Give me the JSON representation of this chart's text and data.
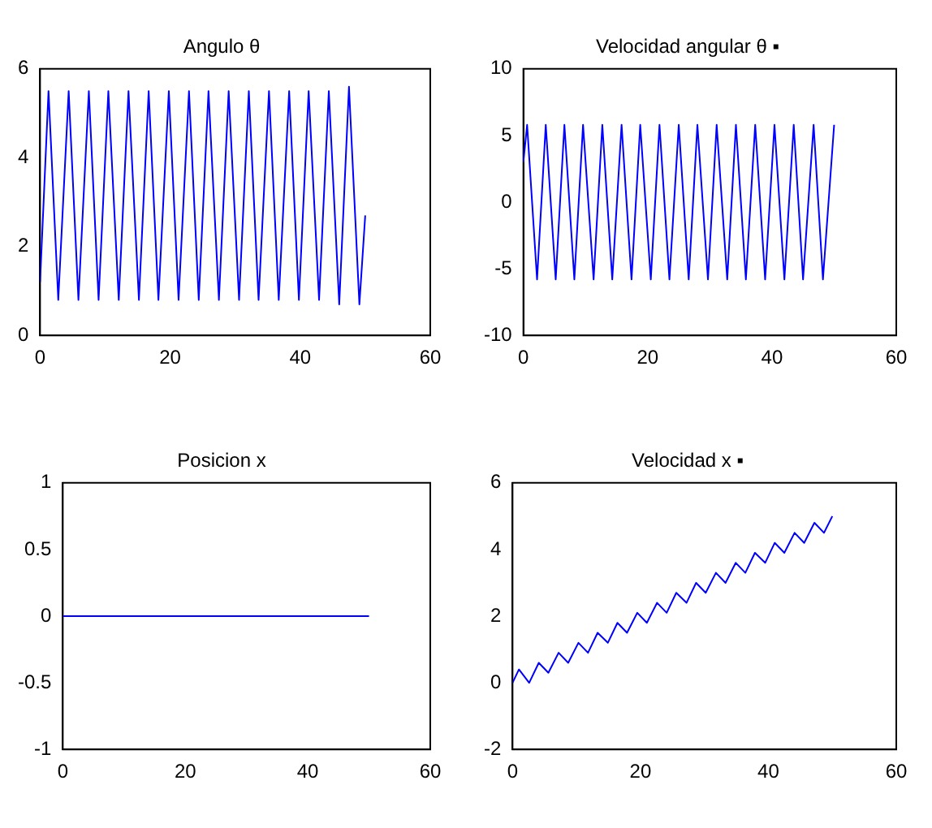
{
  "chart_data": [
    {
      "type": "line",
      "title": "Angulo θ",
      "xlim": [
        0,
        60
      ],
      "xticks": [
        0,
        20,
        40,
        60
      ],
      "ylim": [
        0,
        6
      ],
      "yticks": [
        0,
        2,
        4,
        6
      ],
      "grid": false,
      "legend": false,
      "series": [
        {
          "color": "#0000ff",
          "x": [
            0,
            1.3,
            2.8,
            4.4,
            5.9,
            7.5,
            9.0,
            10.5,
            12.1,
            13.6,
            15.2,
            16.7,
            18.2,
            19.8,
            21.3,
            22.9,
            24.4,
            25.9,
            27.5,
            29.0,
            30.6,
            32.1,
            33.6,
            35.2,
            36.7,
            38.3,
            39.8,
            41.3,
            42.9,
            44.4,
            46.0,
            47.5,
            49.1,
            50
          ],
          "values": [
            1.2,
            5.5,
            0.8,
            5.5,
            0.8,
            5.5,
            0.8,
            5.5,
            0.8,
            5.5,
            0.8,
            5.5,
            0.8,
            5.5,
            0.8,
            5.5,
            0.8,
            5.5,
            0.8,
            5.5,
            0.8,
            5.5,
            0.8,
            5.5,
            0.8,
            5.5,
            0.8,
            5.5,
            0.8,
            5.5,
            0.7,
            5.6,
            0.7,
            2.7
          ]
        }
      ]
    },
    {
      "type": "line",
      "title": "Velocidad angular θ ▪",
      "xlim": [
        0,
        60
      ],
      "xticks": [
        0,
        20,
        40,
        60
      ],
      "ylim": [
        -10,
        10
      ],
      "yticks": [
        -10,
        -5,
        0,
        5,
        10
      ],
      "grid": false,
      "legend": false,
      "series": [
        {
          "color": "#0000ff",
          "x": [
            0,
            0.6,
            2.2,
            3.6,
            5.2,
            6.6,
            8.2,
            9.6,
            11.3,
            12.7,
            14.3,
            15.8,
            17.4,
            18.8,
            20.5,
            21.9,
            23.5,
            25.0,
            26.6,
            28.0,
            29.7,
            31.1,
            32.8,
            34.2,
            35.8,
            37.3,
            38.9,
            40.4,
            42.0,
            43.5,
            45.0,
            46.7,
            48.2,
            50
          ],
          "values": [
            3,
            5.8,
            -5.8,
            5.8,
            -5.8,
            5.8,
            -5.8,
            5.8,
            -5.8,
            5.8,
            -5.8,
            5.8,
            -5.8,
            5.8,
            -5.8,
            5.8,
            -5.8,
            5.8,
            -5.8,
            5.8,
            -5.8,
            5.8,
            -5.8,
            5.8,
            -5.8,
            5.8,
            -5.8,
            5.8,
            -5.8,
            5.8,
            -5.8,
            5.8,
            -5.8,
            5.8
          ]
        }
      ]
    },
    {
      "type": "line",
      "title": "Posicion x",
      "xlim": [
        0,
        60
      ],
      "xticks": [
        0,
        20,
        40,
        60
      ],
      "ylim": [
        -1,
        1
      ],
      "yticks": [
        -1,
        -0.5,
        0,
        0.5,
        1
      ],
      "grid": false,
      "legend": false,
      "series": [
        {
          "color": "#0000ff",
          "x": [
            0,
            50
          ],
          "values": [
            0,
            0
          ]
        }
      ]
    },
    {
      "type": "line",
      "title": "Velocidad x ▪",
      "xlim": [
        0,
        60
      ],
      "xticks": [
        0,
        20,
        40,
        60
      ],
      "ylim": [
        -2,
        6
      ],
      "yticks": [
        -2,
        0,
        2,
        4,
        6
      ],
      "grid": false,
      "legend": false,
      "series": [
        {
          "color": "#0000ff",
          "x": [
            0,
            1.0,
            2.6,
            4.1,
            5.6,
            7.2,
            8.7,
            10.3,
            11.8,
            13.3,
            14.9,
            16.4,
            17.9,
            19.5,
            21.0,
            22.6,
            24.1,
            25.6,
            27.2,
            28.7,
            30.2,
            31.8,
            33.3,
            34.9,
            36.4,
            37.9,
            39.5,
            41.0,
            42.5,
            44.1,
            45.6,
            47.2,
            48.7,
            50
          ],
          "values": [
            0.0,
            0.4,
            0.0,
            0.6,
            0.3,
            0.9,
            0.6,
            1.2,
            0.9,
            1.5,
            1.2,
            1.8,
            1.5,
            2.1,
            1.8,
            2.4,
            2.1,
            2.7,
            2.4,
            3.0,
            2.7,
            3.3,
            3.0,
            3.6,
            3.3,
            3.9,
            3.6,
            4.2,
            3.9,
            4.5,
            4.2,
            4.8,
            4.5,
            5.0
          ]
        }
      ]
    }
  ]
}
